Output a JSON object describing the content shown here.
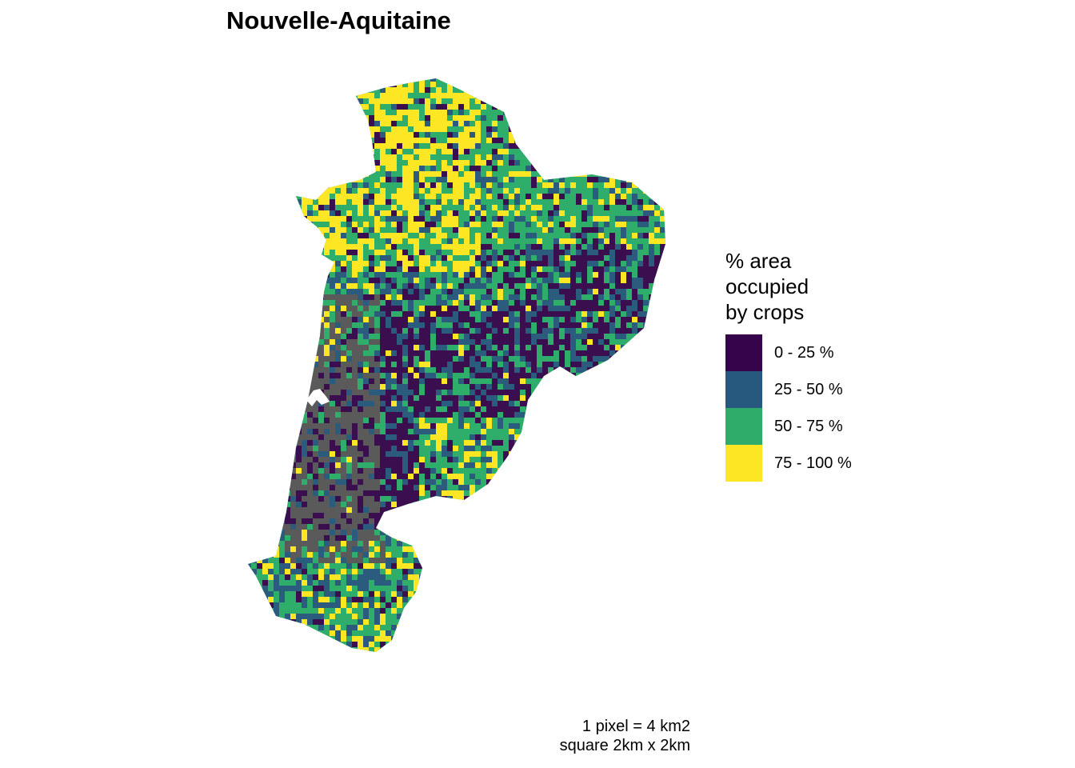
{
  "map": {
    "title": "Nouvelle-Aquitaine",
    "fill_colors": {
      "class_1": "#3b0f4f",
      "class_2": "#2b5b7d",
      "class_3": "#2ead6b",
      "class_4": "#fde725",
      "no_data": "#5a5a5a"
    }
  },
  "legend": {
    "title_lines": [
      "% area",
      "occupied",
      "by crops"
    ],
    "items": [
      {
        "label": "0 - 25 %",
        "color": "#36044a"
      },
      {
        "label": "25 - 50 %",
        "color": "#27587d"
      },
      {
        "label": "50 - 75 %",
        "color": "#2fac6a"
      },
      {
        "label": "75 - 100 %",
        "color": "#fde725"
      }
    ]
  },
  "caption": {
    "line1": "1 pixel = 4 km2",
    "line2": "square 2km x 2km"
  }
}
